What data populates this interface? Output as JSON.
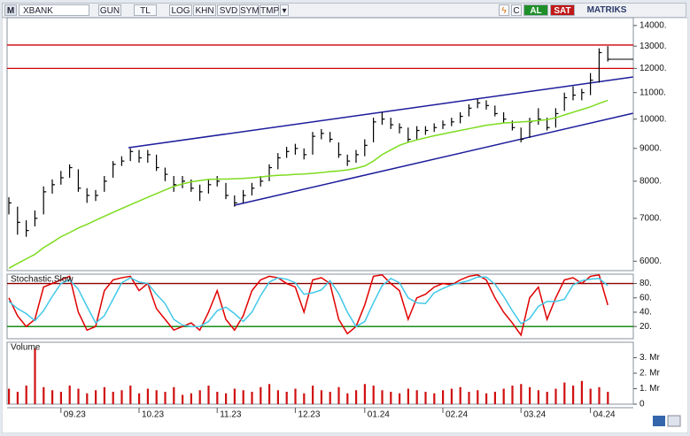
{
  "toolbar": {
    "logo": "M",
    "symbol": "XBANK",
    "buttons": [
      "GUN",
      "TL",
      "LOG",
      "KHN",
      "SVD",
      "SYM",
      "TMP"
    ],
    "buy": "AL",
    "sell": "SAT",
    "brand": "MATRIKS"
  },
  "chart_data": [
    {
      "type": "ohlc",
      "log_scale": true,
      "color": "#000000",
      "categories": [
        null,
        null,
        null,
        null,
        null,
        null,
        "09.23",
        null,
        null,
        null,
        null,
        null,
        null,
        null,
        null,
        "10.23",
        null,
        null,
        null,
        null,
        null,
        null,
        null,
        null,
        "11.23",
        null,
        null,
        null,
        null,
        null,
        null,
        null,
        null,
        "12.23",
        null,
        null,
        null,
        null,
        null,
        null,
        null,
        "01.24",
        null,
        null,
        null,
        null,
        null,
        null,
        null,
        null,
        "02.24",
        null,
        null,
        null,
        null,
        null,
        null,
        null,
        null,
        "03.24",
        null,
        null,
        null,
        null,
        null,
        null,
        null,
        "04.24",
        null,
        null
      ],
      "high": [
        7550,
        7300,
        6950,
        7200,
        7850,
        8050,
        8300,
        8500,
        8350,
        7800,
        7750,
        8150,
        8600,
        8750,
        9000,
        8950,
        8950,
        8800,
        8400,
        8150,
        8150,
        8050,
        7900,
        8050,
        8150,
        7950,
        7600,
        7750,
        7950,
        8150,
        8500,
        8850,
        9050,
        9150,
        9000,
        9550,
        9650,
        9550,
        9200,
        8800,
        8950,
        9300,
        10050,
        10250,
        10050,
        9850,
        9700,
        9750,
        9750,
        9850,
        9950,
        10050,
        10250,
        10550,
        10750,
        10700,
        10500,
        10250,
        9950,
        9700,
        10050,
        10400,
        10050,
        10400,
        11000,
        11250,
        11150,
        11800,
        12900,
        13000
      ],
      "low": [
        7100,
        6600,
        6550,
        6800,
        7100,
        7650,
        7900,
        8100,
        7700,
        7400,
        7450,
        7700,
        8100,
        8450,
        8600,
        8550,
        8550,
        8300,
        8000,
        7700,
        7800,
        7700,
        7450,
        7650,
        7850,
        7500,
        7300,
        7400,
        7600,
        7850,
        8000,
        8350,
        8700,
        8800,
        8650,
        8800,
        9300,
        9200,
        8700,
        8450,
        8550,
        8750,
        9200,
        9800,
        9650,
        9500,
        9200,
        9300,
        9450,
        9550,
        9650,
        9750,
        9850,
        10100,
        10400,
        10350,
        10100,
        9850,
        9600,
        9200,
        9350,
        9800,
        9600,
        9700,
        10300,
        10700,
        10700,
        10900,
        11400,
        12300
      ],
      "close": [
        7400,
        6900,
        6700,
        7000,
        7700,
        7900,
        8100,
        8400,
        7800,
        7600,
        7600,
        8000,
        8500,
        8600,
        8900,
        8700,
        8800,
        8400,
        8200,
        7900,
        8000,
        7800,
        7700,
        7900,
        8000,
        7600,
        7400,
        7600,
        7800,
        8000,
        8400,
        8700,
        8900,
        9000,
        8800,
        9400,
        9500,
        9300,
        8800,
        8600,
        8800,
        9100,
        9900,
        10000,
        9800,
        9700,
        9300,
        9600,
        9600,
        9700,
        9800,
        9900,
        10100,
        10400,
        10600,
        10500,
        10200,
        10000,
        9700,
        9300,
        9900,
        10000,
        9700,
        10200,
        10800,
        10900,
        11000,
        11500,
        12700,
        12400
      ],
      "ma": {
        "color": "#7ddc1f",
        "values": [
          5850,
          5950,
          6050,
          6150,
          6300,
          6420,
          6550,
          6650,
          6760,
          6850,
          6950,
          7050,
          7150,
          7250,
          7350,
          7450,
          7550,
          7650,
          7750,
          7850,
          7920,
          7980,
          8020,
          8050,
          8060,
          8060,
          8070,
          8080,
          8100,
          8120,
          8150,
          8170,
          8180,
          8200,
          8210,
          8230,
          8250,
          8280,
          8300,
          8330,
          8380,
          8450,
          8600,
          8800,
          8950,
          9100,
          9200,
          9280,
          9350,
          9420,
          9480,
          9540,
          9600,
          9660,
          9720,
          9780,
          9820,
          9860,
          9880,
          9900,
          9920,
          9950,
          9980,
          10050,
          10150,
          10250,
          10350,
          10450,
          10580,
          10700
        ]
      },
      "hlines": [
        13050,
        12000
      ],
      "hline_colors": [
        "#d00000",
        "#d00000"
      ],
      "ylim": [
        5800,
        14400
      ],
      "yticks": [
        {
          "value": 6000,
          "label": "6000."
        },
        {
          "value": 7000,
          "label": "7000."
        },
        {
          "value": 8000,
          "label": "8000."
        },
        {
          "value": 9000,
          "label": "9000."
        },
        {
          "value": 10000,
          "label": "10000."
        },
        {
          "value": 11000,
          "label": "11000."
        },
        {
          "value": 12000,
          "label": "12000."
        },
        {
          "value": 13000,
          "label": "13000."
        },
        {
          "value": 14000,
          "label": "14000."
        }
      ]
    },
    {
      "type": "line",
      "title": "Stochastic,Slow",
      "series": [
        {
          "color": "#e00000",
          "values": [
            60,
            35,
            20,
            30,
            75,
            80,
            85,
            90,
            40,
            15,
            20,
            70,
            85,
            88,
            90,
            70,
            80,
            45,
            30,
            15,
            20,
            25,
            15,
            40,
            70,
            30,
            15,
            35,
            70,
            85,
            90,
            88,
            80,
            75,
            40,
            85,
            88,
            80,
            30,
            10,
            20,
            50,
            90,
            92,
            80,
            70,
            30,
            60,
            65,
            75,
            80,
            78,
            85,
            90,
            92,
            85,
            60,
            40,
            25,
            8,
            60,
            75,
            30,
            60,
            85,
            88,
            80,
            90,
            92,
            50
          ]
        },
        {
          "color": "#40c8e8",
          "values": [
            55,
            45,
            38,
            28,
            42,
            62,
            80,
            85,
            72,
            48,
            25,
            35,
            58,
            81,
            88,
            82,
            80,
            65,
            52,
            30,
            22,
            20,
            20,
            27,
            42,
            47,
            38,
            27,
            40,
            63,
            82,
            88,
            86,
            81,
            65,
            67,
            71,
            84,
            66,
            40,
            20,
            27,
            53,
            77,
            87,
            81,
            60,
            53,
            52,
            67,
            73,
            78,
            81,
            84,
            89,
            89,
            79,
            62,
            42,
            24,
            31,
            48,
            55,
            55,
            58,
            78,
            84,
            86,
            87,
            77
          ]
        }
      ],
      "hlines": [
        80,
        20
      ],
      "hline_colors": [
        "#8b0000",
        "#008000"
      ],
      "ylim": [
        3,
        93
      ],
      "yticks": [
        {
          "value": 80,
          "label": "80."
        },
        {
          "value": 60,
          "label": "60."
        },
        {
          "value": 40,
          "label": "40."
        },
        {
          "value": 20,
          "label": "20."
        }
      ]
    },
    {
      "type": "bar",
      "title": "Volume",
      "color": "#d01010",
      "values": [
        1.0,
        0.8,
        1.2,
        3.6,
        1.1,
        0.9,
        0.8,
        1.2,
        1.0,
        0.7,
        0.9,
        1.1,
        0.8,
        0.9,
        1.2,
        0.7,
        1.0,
        0.9,
        0.8,
        1.1,
        0.6,
        0.7,
        0.9,
        1.2,
        0.8,
        0.7,
        1.0,
        0.9,
        0.8,
        1.1,
        1.3,
        0.9,
        0.8,
        1.0,
        0.7,
        1.2,
        0.9,
        0.8,
        1.1,
        0.7,
        0.9,
        1.3,
        1.2,
        0.9,
        0.8,
        0.7,
        1.0,
        0.9,
        0.8,
        0.7,
        0.9,
        1.0,
        1.1,
        0.8,
        0.9,
        0.7,
        0.8,
        1.0,
        1.2,
        1.3,
        1.1,
        0.9,
        0.8,
        1.0,
        1.4,
        1.2,
        1.5,
        1.0,
        1.1,
        0.8
      ],
      "ylim": [
        0,
        4.0
      ],
      "yticks": [
        {
          "value": 3,
          "label": "3. Mr"
        },
        {
          "value": 2,
          "label": "2. Mr"
        },
        {
          "value": 1,
          "label": "1. Mr"
        },
        0
      ]
    }
  ]
}
